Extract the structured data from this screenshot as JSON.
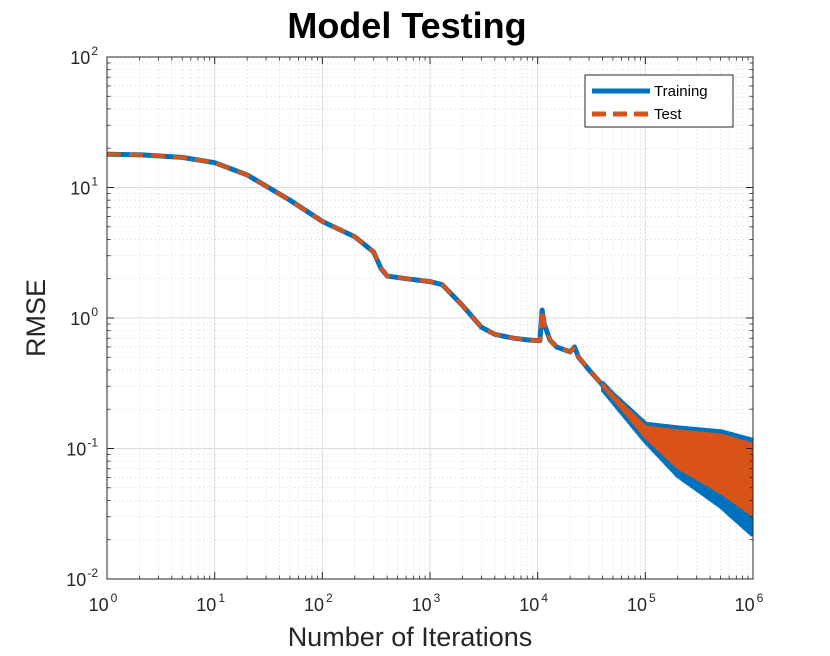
{
  "chart_data": {
    "type": "line",
    "title": "Model Testing",
    "xlabel": "Number of Iterations",
    "ylabel": "RMSE",
    "xscale": "log",
    "yscale": "log",
    "xlim": [
      1,
      1000000
    ],
    "ylim": [
      0.01,
      100
    ],
    "grid": true,
    "minor_grid": true,
    "legend_position": "top-right",
    "x_ticks": [
      {
        "base": "10",
        "exp": "0"
      },
      {
        "base": "10",
        "exp": "1"
      },
      {
        "base": "10",
        "exp": "2"
      },
      {
        "base": "10",
        "exp": "3"
      },
      {
        "base": "10",
        "exp": "4"
      },
      {
        "base": "10",
        "exp": "5"
      },
      {
        "base": "10",
        "exp": "6"
      }
    ],
    "y_ticks": [
      {
        "base": "10",
        "exp": "-2"
      },
      {
        "base": "10",
        "exp": "-1"
      },
      {
        "base": "10",
        "exp": "0"
      },
      {
        "base": "10",
        "exp": "1"
      },
      {
        "base": "10",
        "exp": "2"
      }
    ],
    "x": [
      1,
      2,
      5,
      10,
      20,
      50,
      100,
      200,
      300,
      350,
      400,
      600,
      1000,
      1300,
      2000,
      3000,
      4000,
      5000,
      6000,
      8000,
      10500,
      11000,
      11500,
      13000,
      15000,
      20000,
      22000,
      24000,
      30000,
      50000,
      100000,
      200000,
      500000,
      1000000
    ],
    "series": [
      {
        "name": "Training",
        "color": "#0072BD",
        "style": "solid",
        "values": [
          18,
          17.8,
          17,
          15.5,
          12.5,
          8,
          5.5,
          4.2,
          3.2,
          2.4,
          2.1,
          2.0,
          1.9,
          1.8,
          1.25,
          0.85,
          0.75,
          0.72,
          0.7,
          0.68,
          0.67,
          1.15,
          0.9,
          0.68,
          0.6,
          0.55,
          0.6,
          0.5,
          0.4,
          0.25,
          0.13,
          0.08,
          0.06,
          0.05
        ],
        "upper": [
          18,
          17.8,
          17,
          15.5,
          12.5,
          8,
          5.5,
          4.2,
          3.2,
          2.4,
          2.1,
          2.0,
          1.9,
          1.8,
          1.25,
          0.85,
          0.75,
          0.72,
          0.7,
          0.68,
          0.67,
          1.2,
          0.95,
          0.7,
          0.62,
          0.58,
          0.65,
          0.52,
          0.42,
          0.27,
          0.16,
          0.15,
          0.14,
          0.12
        ],
        "lower": [
          18,
          17.8,
          17,
          15.5,
          12.5,
          8,
          5.5,
          4.2,
          3.2,
          2.4,
          2.1,
          2.0,
          1.9,
          1.8,
          1.25,
          0.85,
          0.75,
          0.72,
          0.7,
          0.68,
          0.67,
          1.1,
          0.85,
          0.65,
          0.58,
          0.52,
          0.55,
          0.47,
          0.37,
          0.22,
          0.11,
          0.06,
          0.035,
          0.021
        ]
      },
      {
        "name": "Test",
        "color": "#D95319",
        "style": "dashed",
        "values": [
          18,
          17.8,
          17,
          15.5,
          12.5,
          8,
          5.5,
          4.2,
          3.2,
          2.4,
          2.1,
          2.0,
          1.9,
          1.8,
          1.25,
          0.85,
          0.75,
          0.72,
          0.7,
          0.68,
          0.67,
          1.15,
          0.9,
          0.68,
          0.6,
          0.55,
          0.6,
          0.5,
          0.4,
          0.25,
          0.13,
          0.08,
          0.06,
          0.05
        ],
        "upper": [
          18,
          17.8,
          17,
          15.5,
          12.5,
          8,
          5.5,
          4.2,
          3.2,
          2.4,
          2.1,
          2.0,
          1.9,
          1.8,
          1.25,
          0.85,
          0.75,
          0.72,
          0.7,
          0.68,
          0.67,
          1.18,
          0.92,
          0.69,
          0.61,
          0.56,
          0.62,
          0.51,
          0.41,
          0.26,
          0.15,
          0.14,
          0.13,
          0.11
        ],
        "lower": [
          18,
          17.8,
          17,
          15.5,
          12.5,
          8,
          5.5,
          4.2,
          3.2,
          2.4,
          2.1,
          2.0,
          1.9,
          1.8,
          1.25,
          0.85,
          0.75,
          0.72,
          0.7,
          0.68,
          0.67,
          1.12,
          0.88,
          0.67,
          0.59,
          0.54,
          0.58,
          0.49,
          0.39,
          0.24,
          0.12,
          0.07,
          0.045,
          0.03
        ]
      }
    ]
  }
}
